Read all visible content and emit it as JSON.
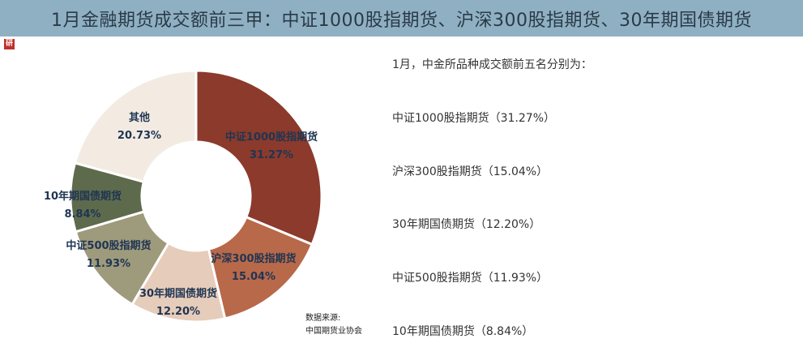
{
  "header": {
    "title": "1月金融期货成交额前三甲：中证1000股指期货、沪深300股指期货、30年期国债期货",
    "logo_text": "研"
  },
  "chart_data": {
    "type": "pie",
    "donut": true,
    "slices": [
      {
        "name": "中证1000股指期货",
        "label": "31.27%",
        "value": 31.27,
        "color": "#8b3a2b"
      },
      {
        "name": "沪深300股指期货",
        "label": "15.04%",
        "value": 15.04,
        "color": "#b8694a"
      },
      {
        "name": "30年期国债期货",
        "label": "12.20%",
        "value": 12.2,
        "color": "#e6ccba"
      },
      {
        "name": "中证500股指期货",
        "label": "11.93%",
        "value": 11.93,
        "color": "#9e9a7c"
      },
      {
        "name": "10年期国债期货",
        "label": "8.84%",
        "value": 8.84,
        "color": "#5e6a4c"
      },
      {
        "name": "其他",
        "label": "20.73%",
        "value": 20.73,
        "color": "#f3ebe2"
      }
    ]
  },
  "source": {
    "line1": "数据来源:",
    "line2": "中国期货业协会"
  },
  "panel": {
    "intro": "1月，中金所品种成交额前五名分别为：",
    "items": [
      "中证1000股指期货（31.27%）",
      "沪深300股指期货（15.04%）",
      "30年期国债期货（12.20%）",
      "中证500股指期货（11.93%）",
      "10年期国债期货（8.84%）"
    ]
  }
}
